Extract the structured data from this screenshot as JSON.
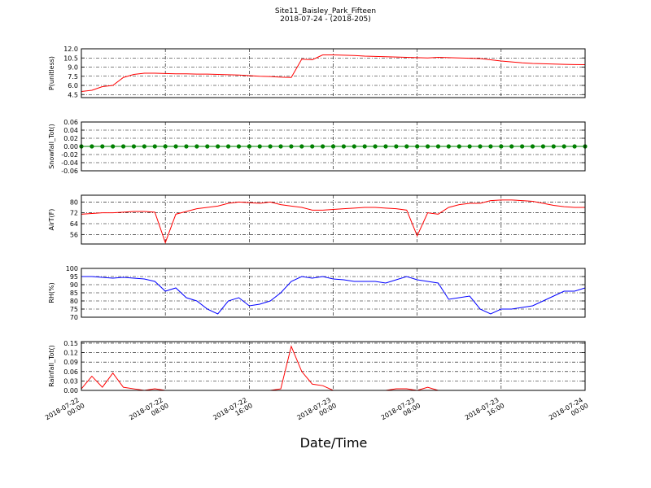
{
  "chart_data": {
    "title": "Site11_Baisley_Park_Fifteen",
    "subtitle": "2018-07-24 - (2018-205)",
    "xlabel": "Date/Time",
    "xlim": [
      "2018-07-22 00:00",
      "2018-07-24 00:00"
    ],
    "xticks": [
      "2018-07-22 00:00",
      "2018-07-22 08:00",
      "2018-07-22 16:00",
      "2018-07-23 00:00",
      "2018-07-23 08:00",
      "2018-07-23 16:00",
      "2018-07-24 00:00"
    ],
    "grid": true,
    "x": [
      "2018-07-22 00:00",
      "2018-07-22 01:00",
      "2018-07-22 02:00",
      "2018-07-22 03:00",
      "2018-07-22 04:00",
      "2018-07-22 05:00",
      "2018-07-22 06:00",
      "2018-07-22 07:00",
      "2018-07-22 08:00",
      "2018-07-22 09:00",
      "2018-07-22 10:00",
      "2018-07-22 11:00",
      "2018-07-22 12:00",
      "2018-07-22 13:00",
      "2018-07-22 14:00",
      "2018-07-22 15:00",
      "2018-07-22 16:00",
      "2018-07-22 17:00",
      "2018-07-22 18:00",
      "2018-07-22 19:00",
      "2018-07-22 20:00",
      "2018-07-22 21:00",
      "2018-07-22 22:00",
      "2018-07-22 23:00",
      "2018-07-23 00:00",
      "2018-07-23 01:00",
      "2018-07-23 02:00",
      "2018-07-23 03:00",
      "2018-07-23 04:00",
      "2018-07-23 05:00",
      "2018-07-23 06:00",
      "2018-07-23 07:00",
      "2018-07-23 08:00",
      "2018-07-23 09:00",
      "2018-07-23 10:00",
      "2018-07-23 11:00",
      "2018-07-23 12:00",
      "2018-07-23 13:00",
      "2018-07-23 14:00",
      "2018-07-23 15:00",
      "2018-07-23 16:00",
      "2018-07-23 17:00",
      "2018-07-23 18:00",
      "2018-07-23 19:00",
      "2018-07-23 20:00",
      "2018-07-23 21:00",
      "2018-07-23 22:00",
      "2018-07-23 23:00",
      "2018-07-24 00:00"
    ],
    "panels": [
      {
        "type": "line",
        "ylabel": "P(unitless)",
        "color": "#ff0000",
        "ylim": [
          4,
          12
        ],
        "yticks": [
          4.5,
          {
            "value": 6,
            "label": "6.0"
          },
          7.5,
          {
            "value": 9,
            "label": "9.0"
          },
          10.5,
          {
            "value": 12,
            "label": "12.0"
          }
        ],
        "values": [
          5.0,
          5.2,
          5.8,
          6.0,
          7.3,
          7.8,
          8.0,
          8.0,
          7.95,
          7.9,
          7.9,
          7.85,
          7.85,
          7.8,
          7.75,
          7.7,
          7.6,
          7.5,
          7.45,
          7.35,
          7.3,
          10.3,
          10.2,
          11.0,
          11.0,
          10.95,
          10.9,
          10.8,
          10.75,
          10.7,
          10.65,
          10.6,
          10.55,
          10.5,
          10.6,
          10.55,
          10.5,
          10.45,
          10.4,
          10.2,
          10.0,
          9.85,
          9.7,
          9.6,
          9.55,
          9.5,
          9.45,
          9.42,
          9.4
        ]
      },
      {
        "type": "line",
        "ylabel": "Snowfall_Tot()",
        "color": "#008000",
        "markers": true,
        "ylim": [
          -0.06,
          0.06
        ],
        "yticks": [
          {
            "value": -0.06,
            "label": "-0.06"
          },
          {
            "value": -0.04,
            "label": "-0.04"
          },
          {
            "value": -0.02,
            "label": "-0.02"
          },
          {
            "value": 0,
            "label": "0.00"
          },
          0.02,
          0.04,
          0.06
        ],
        "values": [
          0,
          0,
          0,
          0,
          0,
          0,
          0,
          0,
          0,
          0,
          0,
          0,
          0,
          0,
          0,
          0,
          0,
          0,
          0,
          0,
          0,
          0,
          0,
          0,
          0,
          0,
          0,
          0,
          0,
          0,
          0,
          0,
          0,
          0,
          0,
          0,
          0,
          0,
          0,
          0,
          0,
          0,
          0,
          0,
          0,
          0,
          0,
          0,
          0
        ]
      },
      {
        "type": "line",
        "ylabel": "AirT(F)",
        "color": "#ff0000",
        "ylim": [
          49,
          85
        ],
        "yticks": [
          56,
          64,
          72,
          80
        ],
        "values": [
          71,
          71.5,
          72,
          72,
          72.5,
          73,
          73,
          72.5,
          50,
          71,
          73,
          75,
          76,
          77,
          79,
          80,
          79.5,
          79,
          80,
          78,
          77,
          76,
          74,
          74,
          74.5,
          75,
          75.5,
          76,
          76,
          75.5,
          75,
          74,
          55,
          72,
          71,
          76,
          78,
          79,
          79,
          81,
          81.5,
          81.5,
          81,
          80.5,
          79,
          77.5,
          76.5,
          76,
          76
        ]
      },
      {
        "type": "line",
        "ylabel": "RH(%)",
        "color": "#0000ff",
        "ylim": [
          70,
          100
        ],
        "yticks": [
          70,
          75,
          80,
          85,
          90,
          95,
          100
        ],
        "values": [
          95,
          95,
          94.5,
          94,
          94.5,
          94,
          93.5,
          92,
          86,
          88,
          82,
          80,
          75,
          72,
          80,
          82,
          77,
          78,
          80,
          85,
          92,
          95,
          94,
          95,
          93.5,
          93,
          92,
          92,
          92,
          91,
          93,
          95,
          93,
          92,
          91,
          81,
          82,
          83,
          75,
          72,
          75,
          75,
          76,
          77,
          80,
          83,
          86,
          86,
          88
        ]
      },
      {
        "type": "line",
        "ylabel": "Rainfall_Tot()",
        "color": "#ff0000",
        "ylim": [
          0,
          0.155
        ],
        "yticks": [
          {
            "value": 0,
            "label": "0.00"
          },
          0.03,
          0.06,
          0.09,
          0.12,
          0.15
        ],
        "values": [
          0.005,
          0.045,
          0.01,
          0.055,
          0.01,
          0.005,
          0,
          0.005,
          0,
          0,
          0,
          0,
          0,
          0,
          0,
          0,
          0,
          0,
          0,
          0.005,
          0.14,
          0.06,
          0.02,
          0.015,
          0,
          0,
          0,
          0,
          0,
          0,
          0.005,
          0.005,
          0,
          0.01,
          0,
          0,
          0,
          0,
          0,
          0,
          0,
          0,
          0,
          0,
          0,
          0,
          0,
          0,
          0
        ]
      }
    ]
  }
}
